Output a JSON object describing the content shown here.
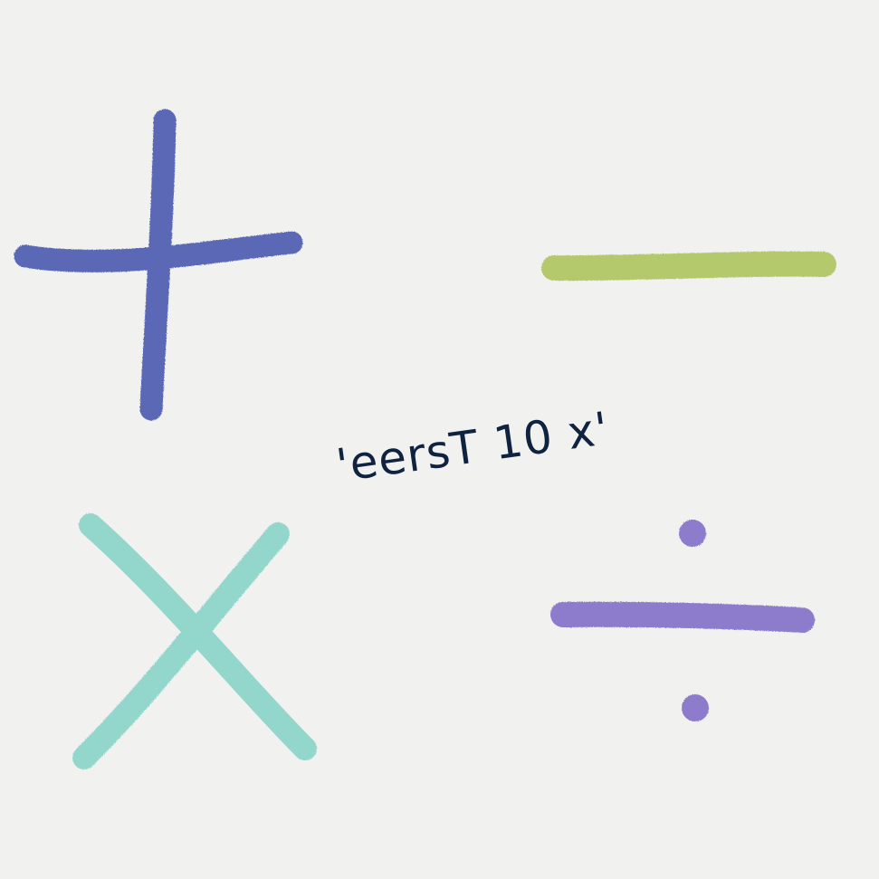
{
  "caption": {
    "text": "'eersT 10 x'"
  },
  "colors": {
    "background": "#f1f1f0",
    "plus": "#5a68b6",
    "minus": "#b3c96c",
    "times": "#93d6cb",
    "divide": "#8d7ccc",
    "caption": "#0f2240"
  },
  "symbols": [
    {
      "name": "plus",
      "icon": "plus-icon"
    },
    {
      "name": "minus",
      "icon": "minus-icon"
    },
    {
      "name": "times",
      "icon": "times-icon"
    },
    {
      "name": "divide",
      "icon": "divide-icon"
    }
  ]
}
